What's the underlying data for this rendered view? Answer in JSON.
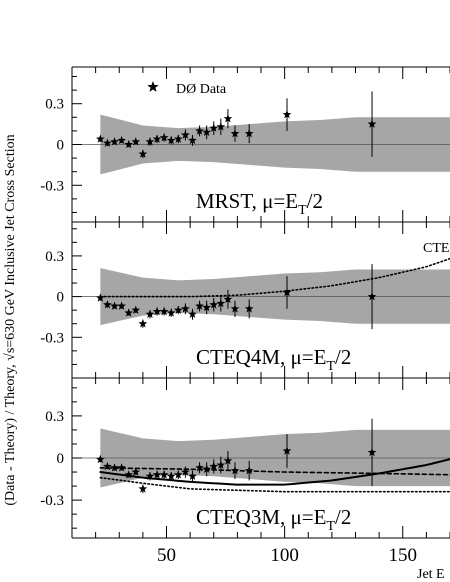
{
  "chart_data": {
    "type": "scatter",
    "ylabel": "(Data - Theory) / Theory, √s=630 GeV Inclusive Jet Cross Section",
    "xlabel": "Jet E",
    "xlim": [
      10,
      170
    ],
    "x_ticks": [
      50,
      100,
      150
    ],
    "legend": {
      "marker": "★",
      "label": "DØ Data",
      "placement": "top-left"
    },
    "band_label": "CTE",
    "data_x": [
      22,
      25,
      28,
      31,
      34,
      37,
      40,
      43,
      46,
      49,
      52,
      55,
      58,
      61,
      64,
      67,
      70,
      73,
      76,
      79,
      85,
      101,
      137
    ],
    "panels": [
      {
        "title": "MRST,  μ=E",
        "title_sub": "T",
        "title_tail": "/2",
        "ylim": [
          -0.57,
          0.57
        ],
        "y_ticks": [
          {
            "v": 0.3,
            "label": "0.3"
          },
          {
            "v": 0,
            "label": "0"
          },
          {
            "v": -0.3,
            "label": "-0.3"
          }
        ],
        "data_y": [
          0.04,
          0.01,
          0.02,
          0.03,
          0.0,
          0.02,
          -0.07,
          0.02,
          0.04,
          0.05,
          0.03,
          0.04,
          0.07,
          0.03,
          0.1,
          0.09,
          0.12,
          0.13,
          0.19,
          0.08,
          0.08,
          0.22,
          0.15
        ],
        "band_x": [
          22,
          40,
          55,
          70,
          85,
          100,
          115,
          130,
          145,
          170
        ],
        "band_upper": [
          0.22,
          0.14,
          0.12,
          0.13,
          0.15,
          0.17,
          0.18,
          0.2,
          0.2,
          0.2
        ],
        "band_lower": [
          -0.22,
          -0.14,
          -0.12,
          -0.13,
          -0.15,
          -0.17,
          -0.18,
          -0.2,
          -0.2,
          -0.2
        ],
        "curves": []
      },
      {
        "title": "CTEQ4M,  μ=E",
        "title_sub": "T",
        "title_tail": "/2",
        "ylim": [
          -0.6,
          0.55
        ],
        "y_ticks": [
          {
            "v": 0.3,
            "label": "0.3"
          },
          {
            "v": 0,
            "label": "0"
          },
          {
            "v": -0.3,
            "label": "-0.3"
          }
        ],
        "data_y": [
          -0.01,
          -0.06,
          -0.07,
          -0.07,
          -0.12,
          -0.1,
          -0.2,
          -0.13,
          -0.11,
          -0.11,
          -0.12,
          -0.1,
          -0.09,
          -0.13,
          -0.07,
          -0.08,
          -0.06,
          -0.05,
          -0.02,
          -0.09,
          -0.09,
          0.03,
          0.0
        ],
        "band_x": [
          22,
          40,
          55,
          70,
          85,
          100,
          115,
          130,
          145,
          170
        ],
        "band_upper": [
          0.21,
          0.14,
          0.12,
          0.13,
          0.15,
          0.17,
          0.18,
          0.2,
          0.2,
          0.2
        ],
        "band_lower": [
          -0.21,
          -0.14,
          -0.12,
          -0.13,
          -0.15,
          -0.17,
          -0.18,
          -0.2,
          -0.2,
          -0.2
        ],
        "curves": [
          {
            "style": "dotted",
            "x": [
              22,
              40,
              60,
              80,
              100,
              120,
              140,
              160,
              175
            ],
            "y": [
              0.0,
              0.0,
              0.0,
              0.01,
              0.04,
              0.08,
              0.14,
              0.22,
              0.31
            ]
          }
        ]
      },
      {
        "title": "CTEQ3M,  μ=E",
        "title_sub": "T",
        "title_tail": "/2",
        "ylim": [
          -0.57,
          0.57
        ],
        "y_ticks": [
          {
            "v": 0.3,
            "label": "0.3"
          },
          {
            "v": 0,
            "label": "0"
          },
          {
            "v": -0.3,
            "label": "-0.3"
          }
        ],
        "data_y": [
          -0.01,
          -0.06,
          -0.07,
          -0.07,
          -0.12,
          -0.1,
          -0.22,
          -0.13,
          -0.12,
          -0.12,
          -0.13,
          -0.12,
          -0.1,
          -0.13,
          -0.07,
          -0.08,
          -0.06,
          -0.05,
          -0.02,
          -0.09,
          -0.09,
          0.05,
          0.04
        ],
        "band_x": [
          22,
          40,
          55,
          70,
          85,
          100,
          115,
          130,
          145,
          170
        ],
        "band_upper": [
          0.21,
          0.14,
          0.12,
          0.13,
          0.15,
          0.17,
          0.18,
          0.2,
          0.2,
          0.2
        ],
        "band_lower": [
          -0.21,
          -0.14,
          -0.12,
          -0.13,
          -0.15,
          -0.17,
          -0.18,
          -0.2,
          -0.2,
          -0.2
        ],
        "curves": [
          {
            "style": "solid",
            "x": [
              22,
              40,
              60,
              80,
              100,
              120,
              140,
              160,
              172
            ],
            "y": [
              -0.1,
              -0.14,
              -0.17,
              -0.19,
              -0.19,
              -0.16,
              -0.11,
              -0.05,
              0.0
            ]
          },
          {
            "style": "dashed",
            "x": [
              22,
              60,
              100,
              140,
              172
            ],
            "y": [
              -0.07,
              -0.08,
              -0.1,
              -0.11,
              -0.12
            ]
          },
          {
            "style": "dotted",
            "x": [
              22,
              40,
              60,
              80,
              100,
              120,
              140,
              172
            ],
            "y": [
              -0.14,
              -0.18,
              -0.22,
              -0.23,
              -0.24,
              -0.24,
              -0.24,
              -0.24
            ]
          }
        ]
      }
    ]
  }
}
